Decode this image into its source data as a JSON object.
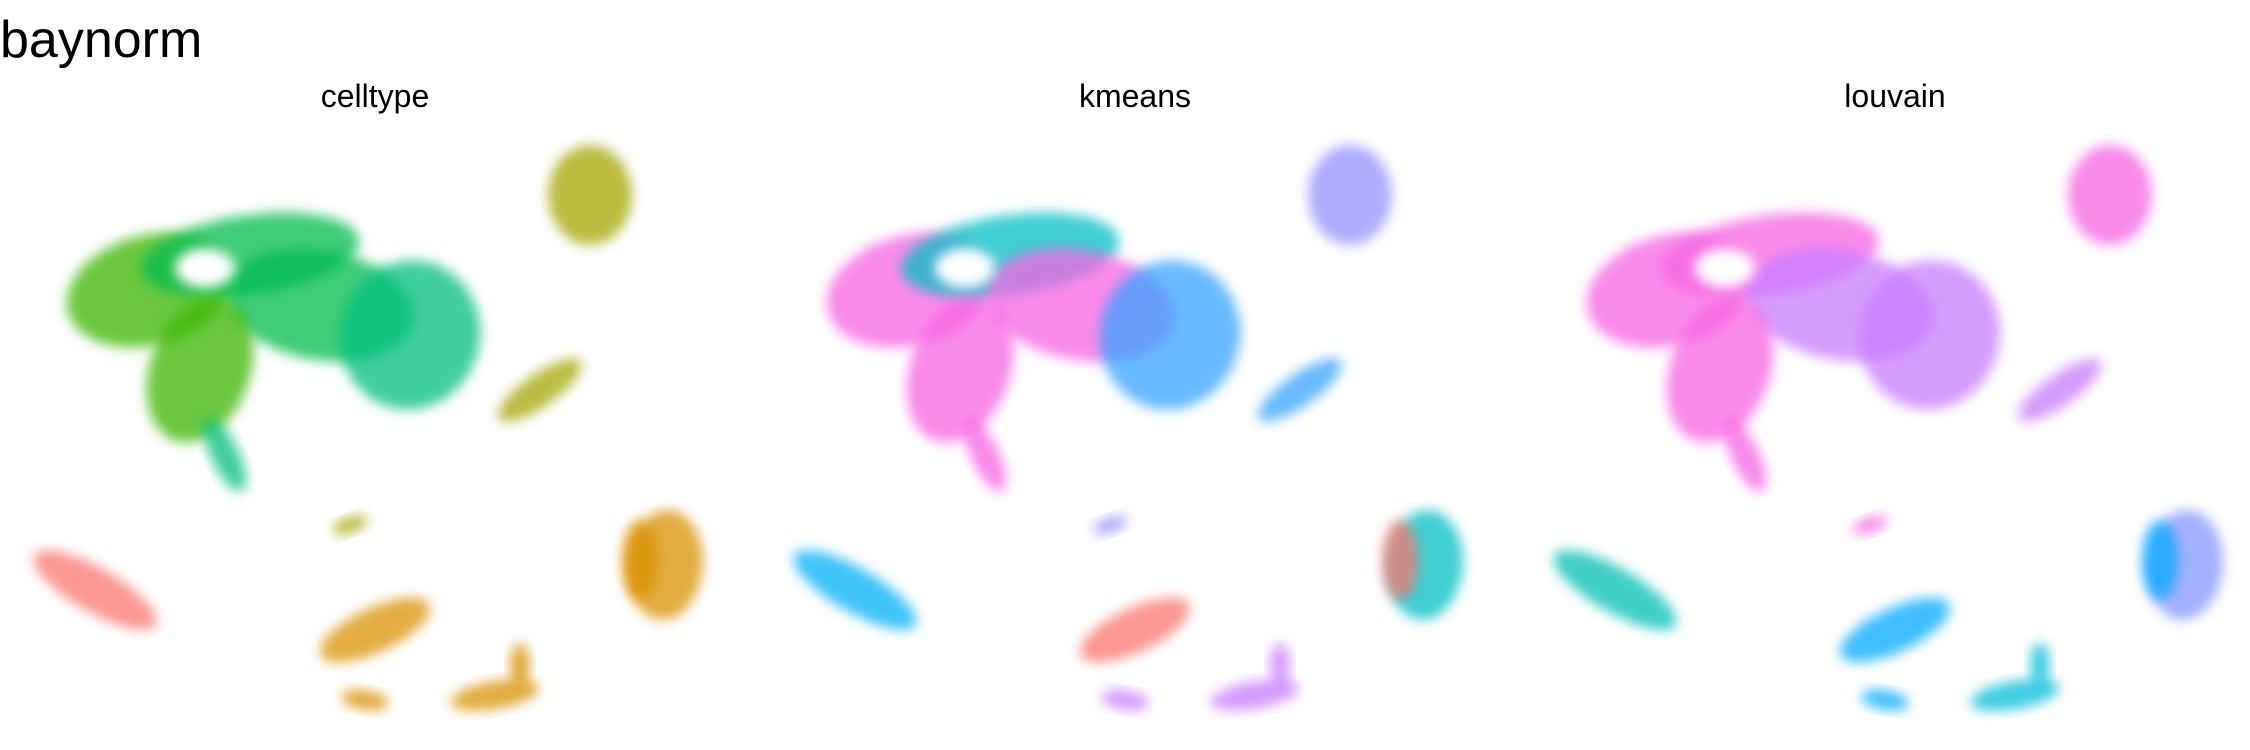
{
  "figure": {
    "title": "baynorm"
  },
  "chart_data": [
    {
      "type": "scatter",
      "title": "celltype",
      "xlabel": "",
      "ylabel": "",
      "grid": false,
      "legend": "none"
    },
    {
      "type": "scatter",
      "title": "kmeans",
      "xlabel": "",
      "ylabel": "",
      "grid": false,
      "legend": "none"
    },
    {
      "type": "scatter",
      "title": "louvain",
      "xlabel": "",
      "ylabel": "",
      "grid": false,
      "legend": "none"
    }
  ],
  "palettes": {
    "celltype": {
      "olive": "#A3A500",
      "green1": "#39B600",
      "green2": "#00BB4E",
      "teal": "#00BF7D",
      "salmon": "#F8766D",
      "orange": "#D89000",
      "cyan": "#00BFC4"
    },
    "kmeans": {
      "purple": "#9590FF",
      "magenta": "#F564E3",
      "teal": "#00BFC4",
      "blue": "#35A2FF",
      "skyblue": "#00B0F6",
      "pink": "#F8766D",
      "lilac": "#C77CFF",
      "cyan": "#00BFC4"
    },
    "louvain": {
      "pink": "#F564E3",
      "lilac": "#C77CFF",
      "teal": "#00BFB2",
      "blue": "#00A9FF",
      "periwinkle": "#8494FF",
      "cyan": "#00BCD8"
    }
  }
}
